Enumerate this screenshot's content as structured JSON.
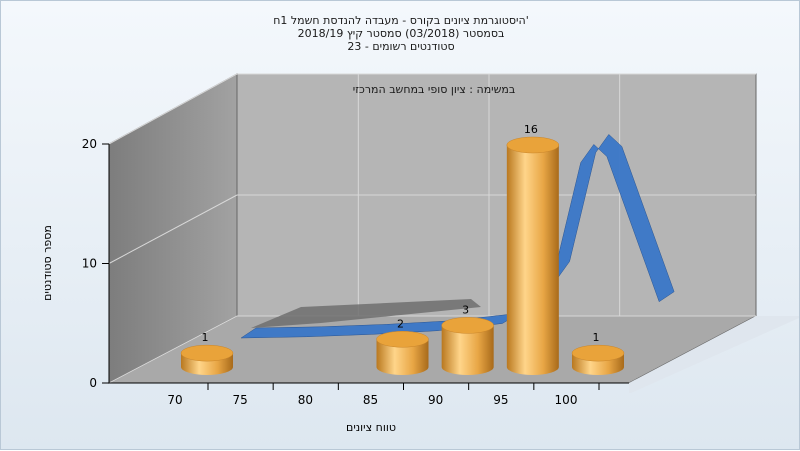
{
  "chart_data": {
    "type": "bar",
    "title_lines": [
      "היסטוגרמת ציונים בקורס - מעבדה להנדסת חשמל 1ח'",
      "בסמסטר  (03/2018)  סמסטר קיץ  2018/19",
      "סטודנטים רשומים - 23"
    ],
    "subtitle": "במשימה : ציון סופי במחשב המרכזי",
    "xlabel": "טווח ציונים",
    "ylabel": "מספר סטודנטים",
    "x_ticks": [
      "70",
      "75",
      "80",
      "85",
      "90",
      "95",
      "100"
    ],
    "y_ticks": [
      "0",
      "10",
      "20"
    ],
    "ylim": [
      0,
      20
    ],
    "categories": [
      "70",
      "85",
      "90",
      "95",
      "100"
    ],
    "values": [
      1,
      2,
      3,
      16,
      1
    ],
    "series": [
      {
        "values": [
          1,
          2,
          3,
          16,
          1
        ],
        "color": "#e8a645"
      }
    ],
    "curve": {
      "x": [
        70,
        75,
        80,
        85,
        90,
        92,
        94,
        95,
        96,
        97,
        98,
        100,
        102
      ],
      "y": [
        0,
        0.1,
        0.3,
        0.6,
        1.2,
        2.5,
        5.5,
        10,
        14.5,
        16,
        15,
        9,
        3
      ],
      "color": "#3a77c8"
    },
    "grid": true,
    "colors": {
      "bar": "#e8a645",
      "curve": "#3a77c8",
      "wall": "#b5b5b5",
      "side_wall": "#8e8e8e"
    }
  }
}
